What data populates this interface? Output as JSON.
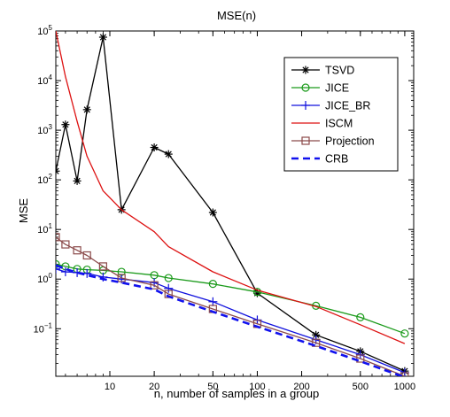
{
  "chart_data": {
    "type": "line",
    "title": "MSE(n)",
    "xlabel": "n, number of samples in a group",
    "ylabel": "MSE",
    "xscale": "log",
    "yscale": "log",
    "xlim": [
      4.3,
      1150
    ],
    "ylim": [
      0.011,
      100000
    ],
    "xticks": [
      {
        "value": 10,
        "label": "10"
      },
      {
        "value": 20,
        "label": "20"
      },
      {
        "value": 50,
        "label": "50"
      },
      {
        "value": 100,
        "label": "100"
      },
      {
        "value": 200,
        "label": "200"
      },
      {
        "value": 500,
        "label": "500"
      },
      {
        "value": 1000,
        "label": "1000"
      }
    ],
    "yticks": [
      {
        "value": 0.1,
        "base": "10",
        "exp": "−1"
      },
      {
        "value": 1,
        "base": "10",
        "exp": "0"
      },
      {
        "value": 10,
        "base": "10",
        "exp": "1"
      },
      {
        "value": 100,
        "base": "10",
        "exp": "2"
      },
      {
        "value": 1000,
        "base": "10",
        "exp": "3"
      },
      {
        "value": 10000,
        "base": "10",
        "exp": "4"
      },
      {
        "value": 100000,
        "base": "10",
        "exp": "5"
      }
    ],
    "grid": false,
    "legend_position": "top-right",
    "series": [
      {
        "name": "TSVD",
        "color": "#000000",
        "marker": "asterisk",
        "dash": "solid",
        "x": [
          4.3,
          5,
          6,
          7,
          9,
          12,
          20,
          25,
          50,
          100,
          250,
          500,
          1000
        ],
        "y": [
          150,
          1300,
          95,
          2600,
          75000,
          25,
          450,
          330,
          22,
          0.52,
          0.075,
          0.035,
          0.014
        ]
      },
      {
        "name": "JICE",
        "color": "#1a9a1a",
        "marker": "circle",
        "dash": "solid",
        "x": [
          4.3,
          5,
          6,
          7,
          9,
          12,
          20,
          25,
          50,
          100,
          250,
          500,
          1000
        ],
        "y": [
          2.0,
          1.8,
          1.6,
          1.55,
          1.5,
          1.4,
          1.2,
          1.05,
          0.8,
          0.55,
          0.29,
          0.17,
          0.08
        ]
      },
      {
        "name": "JICE_BR",
        "color": "#1010dd",
        "marker": "plus",
        "dash": "solid",
        "x": [
          4.3,
          5,
          6,
          7,
          9,
          12,
          20,
          25,
          50,
          100,
          250,
          500,
          1000
        ],
        "y": [
          1.6,
          1.4,
          1.35,
          1.3,
          1.1,
          1.0,
          0.85,
          0.65,
          0.35,
          0.15,
          0.06,
          0.03,
          0.013
        ]
      },
      {
        "name": "ISCM",
        "color": "#dd1111",
        "marker": "none",
        "dash": "solid",
        "x": [
          4.3,
          5,
          6,
          7,
          9,
          12,
          20,
          25,
          50,
          100,
          250,
          500,
          1000
        ],
        "y": [
          100000,
          12000,
          1500,
          300,
          60,
          25,
          9,
          4.5,
          1.4,
          0.6,
          0.28,
          0.12,
          0.05
        ]
      },
      {
        "name": "Projection",
        "color": "#8b4a4a",
        "marker": "square",
        "dash": "solid",
        "x": [
          4.3,
          5,
          6,
          7,
          9,
          12,
          20,
          25,
          50,
          100,
          250,
          500,
          1000
        ],
        "y": [
          7,
          5,
          3.8,
          3.0,
          1.8,
          1.05,
          0.75,
          0.5,
          0.25,
          0.125,
          0.052,
          0.025,
          0.011
        ]
      },
      {
        "name": "CRB",
        "color": "#1111ee",
        "marker": "none",
        "dash": "dashed",
        "x": [
          4.3,
          5,
          6,
          7,
          9,
          12,
          20,
          25,
          50,
          100,
          250,
          500,
          1000
        ],
        "y": [
          1.9,
          1.6,
          1.35,
          1.2,
          1.0,
          0.85,
          0.62,
          0.45,
          0.22,
          0.11,
          0.045,
          0.022,
          0.0105
        ]
      }
    ]
  }
}
